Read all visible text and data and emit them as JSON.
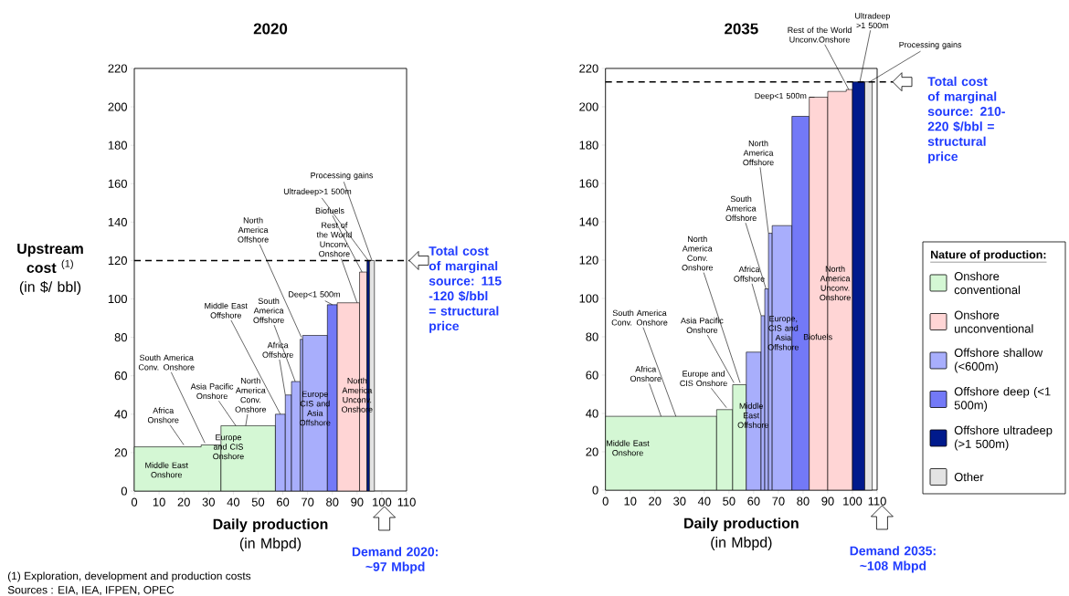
{
  "chart_data": [
    {
      "type": "area",
      "title": "2020",
      "xlabel": "**Daily production** (in Mbpd)",
      "ylabel": "**Upstream cost** $^{(1)}$ (in $/ bbl)",
      "xlim": [
        0,
        110
      ],
      "ylim": [
        0,
        220
      ],
      "xticks": [
        0,
        10,
        20,
        30,
        40,
        50,
        60,
        70,
        80,
        90,
        100,
        110
      ],
      "yticks": [
        0,
        20,
        40,
        60,
        80,
        100,
        120,
        140,
        160,
        180,
        200,
        220
      ],
      "series": [
        {
          "color": "#d4f7d4",
          "x": [
            0,
            27,
            27,
            35
          ],
          "values": [
            23,
            23,
            24,
            24
          ]
        },
        {
          "color": "#d4f7d4",
          "x": [
            35,
            40,
            40,
            54,
            54,
            57
          ],
          "values": [
            34,
            34,
            34,
            34,
            34,
            34
          ]
        },
        {
          "color": "#a8aefc",
          "x": [
            57,
            61
          ],
          "values": [
            40,
            40
          ]
        },
        {
          "color": "#a8aefc",
          "x": [
            61,
            63.5
          ],
          "values": [
            50,
            50
          ]
        },
        {
          "color": "#a8aefc",
          "x": [
            63.5,
            67
          ],
          "values": [
            57,
            57
          ]
        },
        {
          "color": "#a8aefc",
          "x": [
            67,
            68
          ],
          "values": [
            79,
            79
          ]
        },
        {
          "color": "#a8aefc",
          "x": [
            68,
            78
          ],
          "values": [
            81,
            81
          ]
        },
        {
          "color": "#7379f7",
          "x": [
            78,
            82
          ],
          "values": [
            97,
            97
          ]
        },
        {
          "color": "#ffd5d5",
          "x": [
            82,
            88.5,
            88.5,
            91
          ],
          "values": [
            98,
            98,
            98,
            98
          ]
        },
        {
          "color": "#ffd5d5",
          "x": [
            91,
            94
          ],
          "values": [
            114,
            114
          ]
        },
        {
          "color": "#001a8c",
          "x": [
            94,
            95
          ],
          "values": [
            120,
            120
          ]
        },
        {
          "color": "#e3e3e3",
          "x": [
            95,
            97
          ],
          "values": [
            120,
            120
          ]
        }
      ],
      "ref_lines": [
        {
          "axis": "y",
          "value": 120,
          "line_style": "dashed"
        }
      ],
      "annotations": [
        "Middle East Onshore",
        {
          "text": "Africa Onshore",
          "x": 20,
          "y": 24
        },
        {
          "text": "South America Conv. Onshore",
          "x": 28.5,
          "y": 25
        },
        "Europe and CIS Onshore",
        {
          "text": "Asia Pacific Onshore",
          "x": 41,
          "y": 34
        },
        {
          "text": "North America Conv. Onshore",
          "x": 45,
          "y": 34
        },
        {
          "text": "Middle East Offshore",
          "x": 59,
          "y": 40
        },
        {
          "text": "Africa Offshore",
          "x": 61,
          "y": 50
        },
        {
          "text": "South America Offshore",
          "x": 65,
          "y": 57
        },
        {
          "text": "North America Offshore",
          "x": 67.5,
          "y": 80
        },
        "Europe CIS and Asia Offshore",
        {
          "text": "Deep<1 500m",
          "x": 80,
          "y": 97
        },
        "North America Unconv. Onshore",
        {
          "text": "Rest of the World Unconv. Onshore",
          "x": 90,
          "y": 98
        },
        {
          "text": "Biofuels",
          "x": 92,
          "y": 114
        },
        {
          "text": "Ultradeep>1 500m",
          "x": 94.5,
          "y": 120
        },
        {
          "text": "Processing gains",
          "x": 96,
          "y": 120
        },
        "Total cost of marginal source: 115 -120 $/bbl = structural price",
        "Demand 2020: ~97 Mbpd",
        "(1) Exploration, development and production costs",
        "Sources : EIA, IEA, IFPEN, OPEC"
      ]
    },
    {
      "type": "area",
      "title": "2035",
      "xlabel": "**Daily production** (in Mbpd)",
      "xlim": [
        0,
        110
      ],
      "ylim": [
        0,
        220
      ],
      "xticks": [
        0,
        10,
        20,
        30,
        40,
        50,
        60,
        70,
        80,
        90,
        100,
        110
      ],
      "yticks": [
        0,
        20,
        40,
        60,
        80,
        100,
        120,
        140,
        160,
        180,
        200,
        220
      ],
      "series": [
        {
          "color": "#d4f7d4",
          "x": [
            0,
            45
          ],
          "values": [
            38.5,
            38.5
          ]
        },
        {
          "color": "#d4f7d4",
          "x": [
            45,
            51.5
          ],
          "values": [
            42,
            42
          ]
        },
        {
          "color": "#d4f7d4",
          "x": [
            51.5,
            55.5,
            55.5,
            57
          ],
          "values": [
            55,
            55,
            55,
            55
          ]
        },
        {
          "color": "#a8aefc",
          "x": [
            57,
            63
          ],
          "values": [
            72,
            72
          ]
        },
        {
          "color": "#a8aefc",
          "x": [
            63,
            64.5
          ],
          "values": [
            91,
            91
          ]
        },
        {
          "color": "#a8aefc",
          "x": [
            64.5,
            66
          ],
          "values": [
            105,
            105
          ]
        },
        {
          "color": "#a8aefc",
          "x": [
            66,
            67.5
          ],
          "values": [
            134,
            134
          ]
        },
        {
          "color": "#a8aefc",
          "x": [
            67.5,
            75.5
          ],
          "values": [
            138,
            138
          ]
        },
        {
          "color": "#7379f7",
          "x": [
            75.5,
            82.5
          ],
          "values": [
            195,
            195
          ]
        },
        {
          "color": "#ffd5d5",
          "x": [
            82.5,
            90
          ],
          "values": [
            205,
            205
          ]
        },
        {
          "color": "#ffd5d5",
          "x": [
            90,
            97.5,
            97.5,
            100
          ],
          "values": [
            208,
            208,
            209,
            209
          ]
        },
        {
          "color": "#001a8c",
          "x": [
            100,
            105
          ],
          "values": [
            213,
            213
          ]
        },
        {
          "color": "#e3e3e3",
          "x": [
            105,
            108
          ],
          "values": [
            213,
            213
          ]
        }
      ],
      "ref_lines": [
        {
          "axis": "y",
          "value": 213,
          "line_style": "dashed"
        }
      ],
      "annotations": [
        "Middle East Onshore",
        {
          "text": "Africa Onshore",
          "x": 22.5,
          "y": 38.5
        },
        {
          "text": "South America Conv. Onshore",
          "x": 28.5,
          "y": 38.5
        },
        {
          "text": "Europe and CIS Onshore",
          "x": 49,
          "y": 43
        },
        {
          "text": "Asia Pacific Onshore",
          "x": 52,
          "y": 56
        },
        {
          "text": "North America Conv. Onshore",
          "x": 54.5,
          "y": 56
        },
        "Middle East Offshore",
        {
          "text": "Africa Offshore",
          "x": 63,
          "y": 91
        },
        {
          "text": "South America Offshore",
          "x": 65,
          "y": 105
        },
        {
          "text": "North America Offshore",
          "x": 66,
          "y": 134
        },
        "Europe, CIS and Asia Offshore",
        "Biofuels",
        "North America Unconv. Onshore",
        {
          "text": "Deep<1 500m",
          "x": 82.5,
          "y": 205
        },
        {
          "text": "Rest of the World Unconv.Onshore",
          "x": 98.5,
          "y": 209
        },
        {
          "text": "Ultradeep >1 500m",
          "x": 103,
          "y": 213
        },
        {
          "text": "Processing gains",
          "x": 107,
          "y": 213
        },
        "Total cost of marginal source: 210-220 $/bbl = structural price",
        "Demand 2035: ~108 Mbpd"
      ]
    },
    {
      "type": "other",
      "legend_title": "Nature of production:",
      "categories": [
        "Onshore conventional",
        "Onshore unconventional",
        "Offshore shallow (<600m)",
        "Offshore deep (<1 500m)",
        "Offshore ultradeep (>1 500m)",
        "Other"
      ],
      "colors": [
        "#d4f7d4",
        "#ffd5d5",
        "#a8aefc",
        "#7379f7",
        "#001a8c",
        "#e3e3e3"
      ]
    }
  ]
}
